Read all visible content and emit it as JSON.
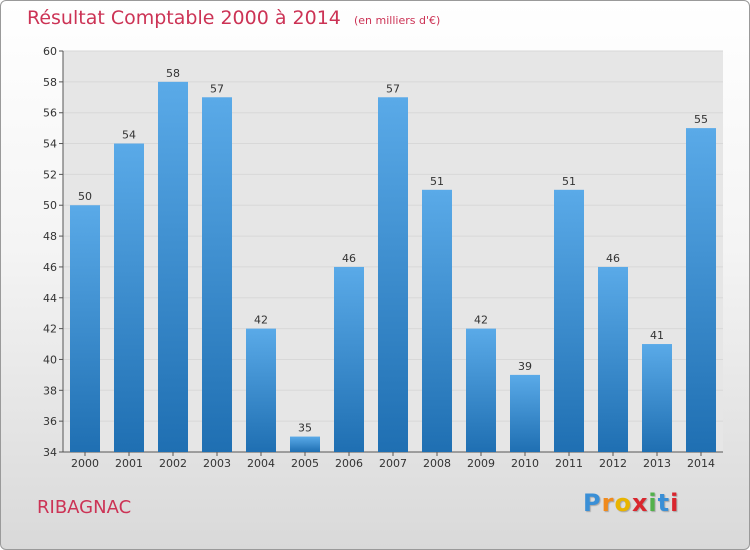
{
  "title": "Résultat Comptable 2000 à 2014",
  "subtitle": "(en milliers d'€)",
  "commune": "RIBAGNAC",
  "logo": {
    "letters": [
      "P",
      "r",
      "o",
      "x",
      "i",
      "t",
      "i"
    ],
    "colors": [
      "#3a8fd6",
      "#f08a1c",
      "#e8b400",
      "#d9262e",
      "#52b14b",
      "#3a8fd6",
      "#d9262e"
    ]
  },
  "colors": {
    "title": "#cc3355",
    "bar_light": "#5aaae8",
    "bar_dark": "#1f6fb2",
    "grid": "#d8d8d8",
    "plot_bg": "#e6e6e6"
  },
  "chart_data": {
    "type": "bar",
    "title": "Résultat Comptable 2000 à 2014",
    "xlabel": "",
    "ylabel": "",
    "categories": [
      "2000",
      "2001",
      "2002",
      "2003",
      "2004",
      "2005",
      "2006",
      "2007",
      "2008",
      "2009",
      "2010",
      "2011",
      "2012",
      "2013",
      "2014"
    ],
    "values": [
      50,
      54,
      58,
      57,
      42,
      35,
      46,
      57,
      51,
      42,
      39,
      51,
      46,
      41,
      55
    ],
    "ylim": [
      34,
      60
    ],
    "yticks": [
      34,
      36,
      38,
      40,
      42,
      44,
      46,
      48,
      50,
      52,
      54,
      56,
      58,
      60
    ],
    "grid": true
  }
}
